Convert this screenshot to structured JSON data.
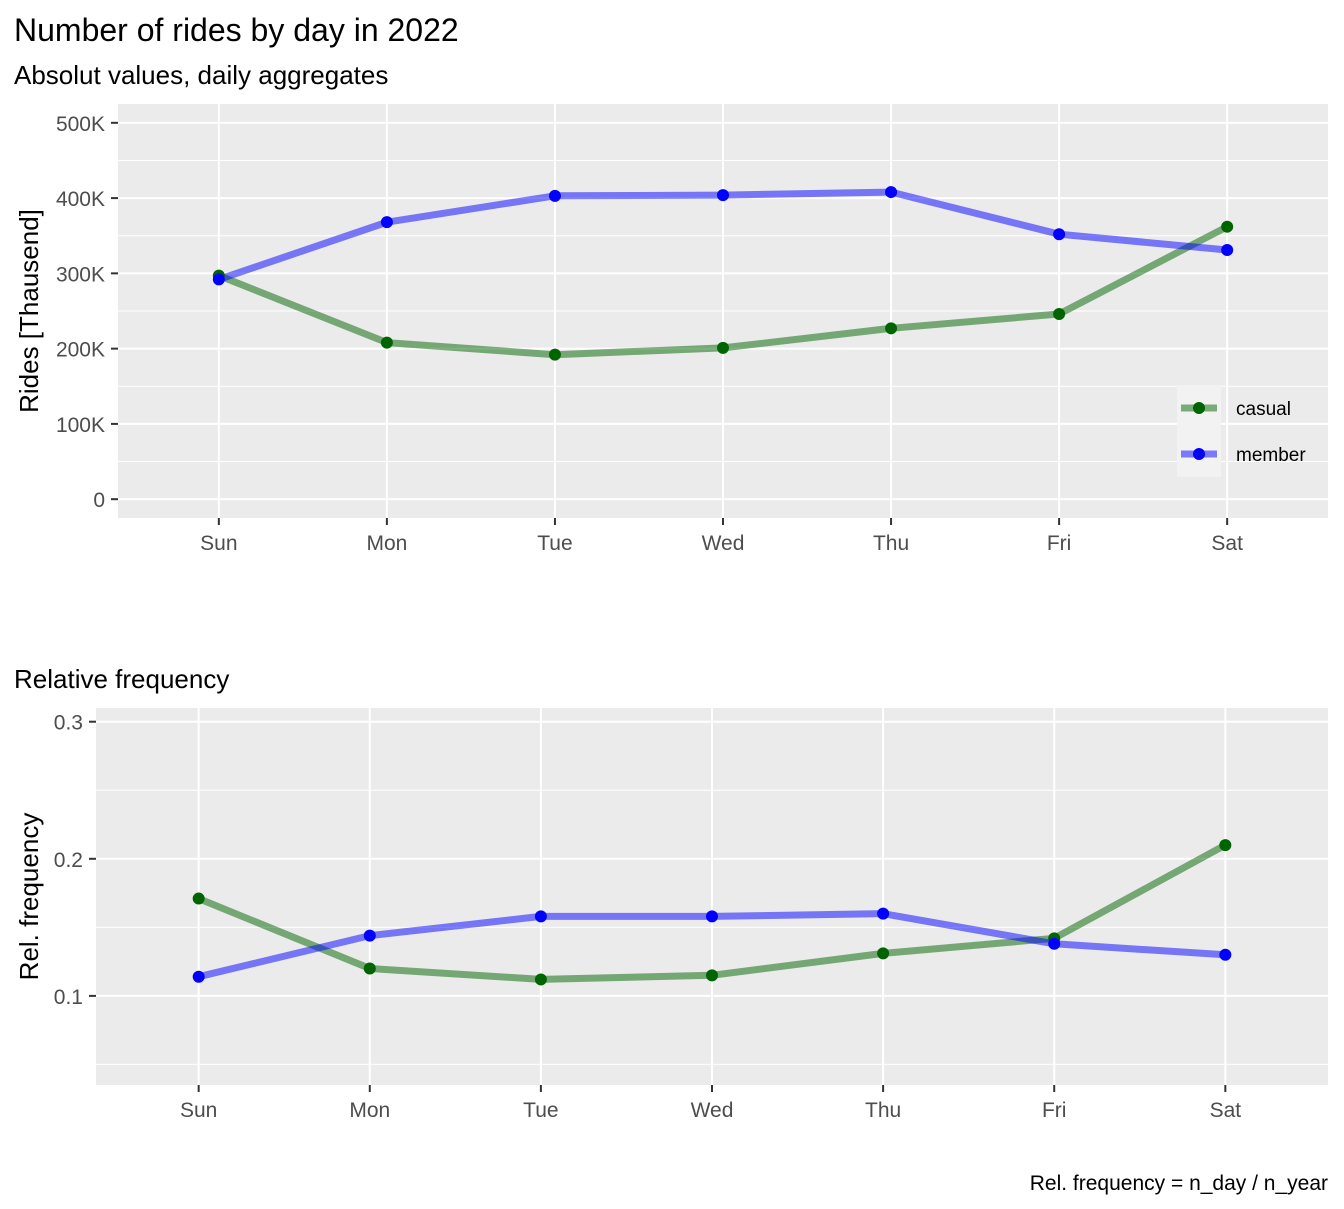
{
  "caption": "Rel. frequency = n_day / n_year",
  "chart_data": [
    {
      "type": "line",
      "title": "Number of rides by day in 2022",
      "subtitle": "Absolut values, daily aggregates",
      "xlabel": "",
      "ylabel": "Rides [Thausend]",
      "categories": [
        "Sun",
        "Mon",
        "Tue",
        "Wed",
        "Thu",
        "Fri",
        "Sat"
      ],
      "ylim": [
        -25000,
        525000
      ],
      "yticks": [
        0,
        100000,
        200000,
        300000,
        400000,
        500000
      ],
      "ytick_labels": [
        "0",
        "100K",
        "200K",
        "300K",
        "400K",
        "500K"
      ],
      "grid": true,
      "legend": {
        "position": "bottom-right",
        "entries": [
          "casual",
          "member"
        ]
      },
      "series": [
        {
          "name": "casual",
          "color": "#006400",
          "values": [
            297000,
            208000,
            192000,
            201000,
            227000,
            246000,
            362000
          ]
        },
        {
          "name": "member",
          "color": "#0000FF",
          "values": [
            292000,
            368000,
            403000,
            404000,
            408000,
            352000,
            331000
          ]
        }
      ]
    },
    {
      "type": "line",
      "subtitle": "Relative frequency",
      "xlabel": "",
      "ylabel": "Rel. frequency",
      "categories": [
        "Sun",
        "Mon",
        "Tue",
        "Wed",
        "Thu",
        "Fri",
        "Sat"
      ],
      "ylim": [
        0.035,
        0.31
      ],
      "yticks": [
        0.1,
        0.2,
        0.3
      ],
      "ytick_labels": [
        "0.1",
        "0.2",
        "0.3"
      ],
      "grid": true,
      "series": [
        {
          "name": "casual",
          "color": "#006400",
          "values": [
            0.171,
            0.12,
            0.112,
            0.115,
            0.131,
            0.142,
            0.21
          ]
        },
        {
          "name": "member",
          "color": "#0000FF",
          "values": [
            0.114,
            0.144,
            0.158,
            0.158,
            0.16,
            0.138,
            0.13
          ]
        }
      ]
    }
  ]
}
